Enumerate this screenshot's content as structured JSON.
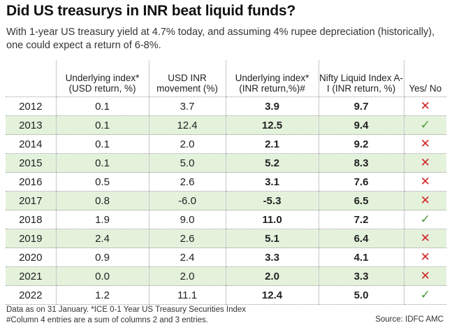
{
  "title": "Did US treasurys in INR beat liquid funds?",
  "subtitle": "With 1-year US treasury yield at 4.7% today, and assuming 4% rupee depreciation (historically), one could expect a return of 6-8%.",
  "headers": [
    "",
    "Underlying index* (USD return, %)",
    "USD INR movement (%)",
    "Underlying index* (INR return,%)#",
    "Nifty Liquid Index A-I (INR return, %)",
    "Yes/ No"
  ],
  "rows": [
    {
      "year": "2012",
      "usd": "0.1",
      "move": "3.7",
      "inr": "3.9",
      "nifty": "9.7",
      "result": "no"
    },
    {
      "year": "2013",
      "usd": "0.1",
      "move": "12.4",
      "inr": "12.5",
      "nifty": "9.4",
      "result": "yes"
    },
    {
      "year": "2014",
      "usd": "0.1",
      "move": "2.0",
      "inr": "2.1",
      "nifty": "9.2",
      "result": "no"
    },
    {
      "year": "2015",
      "usd": "0.1",
      "move": "5.0",
      "inr": "5.2",
      "nifty": "8.3",
      "result": "no"
    },
    {
      "year": "2016",
      "usd": "0.5",
      "move": "2.6",
      "inr": "3.1",
      "nifty": "7.6",
      "result": "no"
    },
    {
      "year": "2017",
      "usd": "0.8",
      "move": "-6.0",
      "inr": "-5.3",
      "nifty": "6.5",
      "result": "no"
    },
    {
      "year": "2018",
      "usd": "1.9",
      "move": "9.0",
      "inr": "11.0",
      "nifty": "7.2",
      "result": "yes"
    },
    {
      "year": "2019",
      "usd": "2.4",
      "move": "2.6",
      "inr": "5.1",
      "nifty": "6.4",
      "result": "no"
    },
    {
      "year": "2020",
      "usd": "0.9",
      "move": "2.4",
      "inr": "3.3",
      "nifty": "4.1",
      "result": "no"
    },
    {
      "year": "2021",
      "usd": "0.0",
      "move": "2.0",
      "inr": "2.0",
      "nifty": "3.3",
      "result": "no"
    },
    {
      "year": "2022",
      "usd": "1.2",
      "move": "11.1",
      "inr": "12.4",
      "nifty": "5.0",
      "result": "yes"
    }
  ],
  "marks": {
    "yes": "✓",
    "no": "✕"
  },
  "colors": {
    "yes": "#4a9a3a",
    "no": "#d32626",
    "stripe": "#e4f2dc"
  },
  "footnote_1": "Data as on 31 January. *ICE 0-1 Year US Treasury Securities Index",
  "footnote_2": "#Column 4 entries are a sum of columns 2 and 3 entries.",
  "source": "Source: IDFC AMC"
}
